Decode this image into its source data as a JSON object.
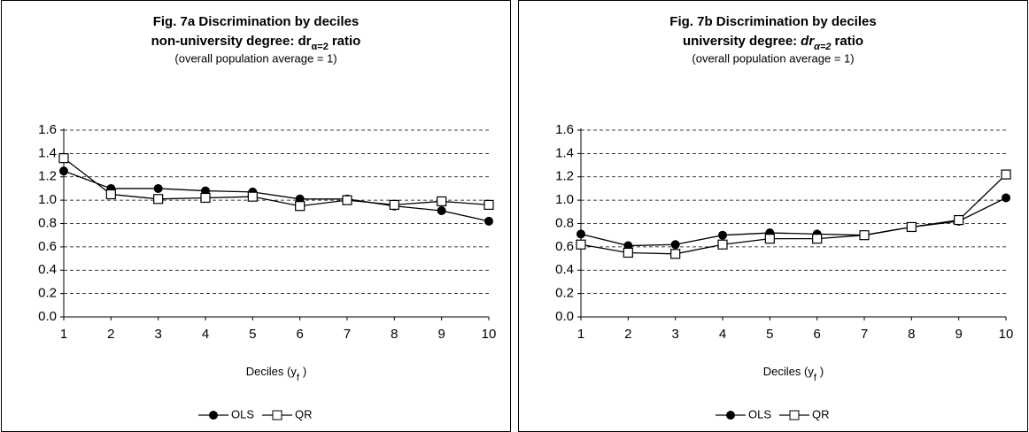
{
  "chart_data": [
    {
      "type": "line",
      "title": "Fig. 7a Discrimination by deciles",
      "title_line2": [
        {
          "text": "non-university degree: dr"
        },
        {
          "text": "α=2",
          "sub": true
        },
        {
          "text": "ratio"
        }
      ],
      "subtitle": "(overall population average = 1)",
      "x_label": [
        {
          "text": "Deciles (y"
        },
        {
          "text": "f",
          "sub": true
        },
        {
          "text": ")"
        }
      ],
      "x": [
        1,
        2,
        3,
        4,
        5,
        6,
        7,
        8,
        9,
        10
      ],
      "xlim": [
        1,
        10
      ],
      "xticks": [
        1,
        2,
        3,
        4,
        5,
        6,
        7,
        8,
        9,
        10
      ],
      "ylim": [
        0,
        1.6
      ],
      "yticks": [
        {
          "value": 0,
          "label": "0.0"
        },
        0.2,
        0.4,
        0.6,
        0.8,
        {
          "value": 1,
          "label": "1.0"
        },
        1.2,
        1.4,
        1.6
      ],
      "grid": true,
      "series": [
        {
          "name": "OLS",
          "color": "#000000",
          "marker": "circle",
          "values": [
            1.25,
            1.1,
            1.1,
            1.08,
            1.07,
            1.01,
            1.01,
            0.95,
            0.91,
            0.82
          ]
        },
        {
          "name": "QR",
          "color": "#000000",
          "marker": "square",
          "values": [
            1.36,
            1.05,
            1.01,
            1.02,
            1.03,
            0.95,
            1.0,
            0.96,
            0.99,
            0.96
          ]
        }
      ]
    },
    {
      "type": "line",
      "title": "Fig. 7b Discrimination by deciles",
      "title_line2": [
        {
          "text": "university degree:"
        },
        {
          "text": "dr",
          "italic": true
        },
        {
          "text": "α=2",
          "sub": true,
          "italic": true
        },
        {
          "text": "ratio"
        }
      ],
      "subtitle": "(overall population average = 1)",
      "x_label": [
        {
          "text": "Deciles (y"
        },
        {
          "text": "f",
          "sub": true
        },
        {
          "text": ")"
        }
      ],
      "x": [
        1,
        2,
        3,
        4,
        5,
        6,
        7,
        8,
        9,
        10
      ],
      "xlim": [
        1,
        10
      ],
      "xticks": [
        1,
        2,
        3,
        4,
        5,
        6,
        7,
        8,
        9,
        10
      ],
      "ylim": [
        0,
        1.6
      ],
      "yticks": [
        {
          "value": 0,
          "label": "0.0"
        },
        0.2,
        0.4,
        0.6,
        0.8,
        {
          "value": 1,
          "label": "1.0"
        },
        1.2,
        1.4,
        1.6
      ],
      "grid": true,
      "series": [
        {
          "name": "OLS",
          "color": "#000000",
          "marker": "circle",
          "values": [
            0.71,
            0.61,
            0.62,
            0.7,
            0.72,
            0.71,
            0.7,
            0.77,
            0.82,
            1.02
          ]
        },
        {
          "name": "QR",
          "color": "#000000",
          "marker": "square",
          "values": [
            0.62,
            0.55,
            0.54,
            0.62,
            0.67,
            0.67,
            0.7,
            0.77,
            0.83,
            1.22
          ]
        }
      ]
    }
  ]
}
